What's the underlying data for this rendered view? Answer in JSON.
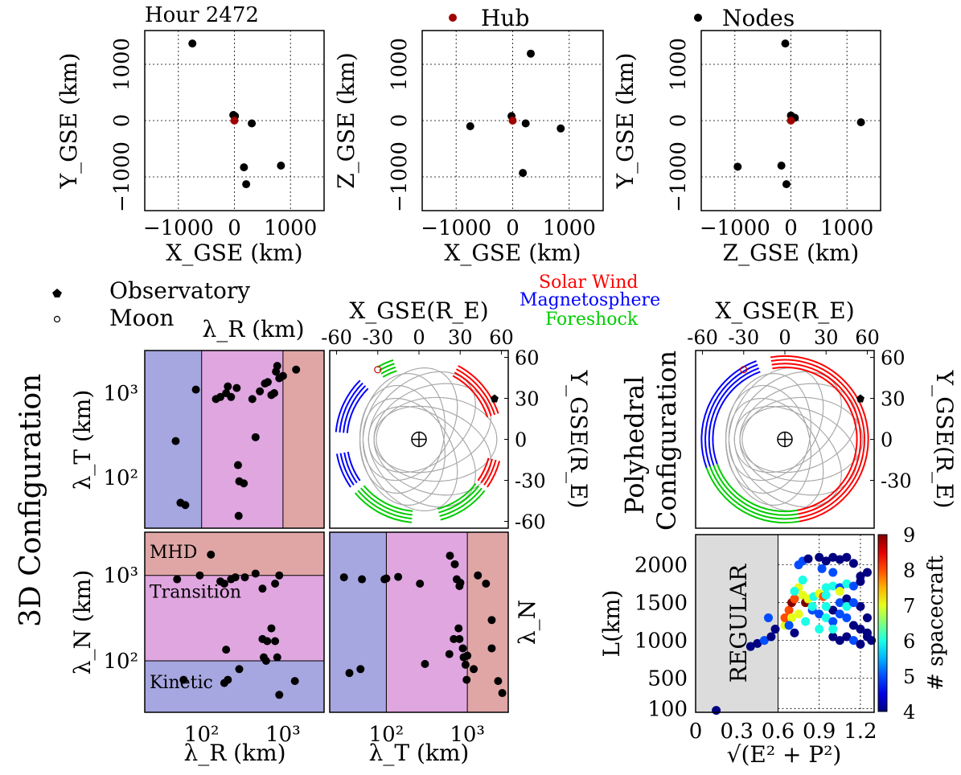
{
  "header": {
    "hour_label": "Hour 2472",
    "legend_hub": "Hub",
    "legend_nodes": "Nodes",
    "legend_observatory": "Observatory",
    "legend_moon": "Moon",
    "region_solar_wind": "Solar Wind",
    "region_magnetosphere": "Magnetosphere",
    "region_foreshock": "Foreshock",
    "left_title": "3D Configuration",
    "right_title_line1": "Polyhedral",
    "right_title_line2": "Configuration"
  },
  "colors": {
    "hub": "#a00000",
    "nodes": "#000000",
    "solar_wind": "#ff0000",
    "magnetosphere": "#0000ff",
    "foreshock": "#00cc00",
    "orbit_rings": "#a8a8a8",
    "kinetic_region": "#a6a6e0",
    "transition_region": "#e0a6e0",
    "mhd_region": "#e0a6a6",
    "regular_region": "#dcdcdc"
  },
  "chart_data": [
    {
      "id": "xy",
      "type": "scatter",
      "xlabel": "X_GSE (km)",
      "ylabel": "Y_GSE (km)",
      "xlim": [
        -1600,
        1600
      ],
      "ylim": [
        -1600,
        1600
      ],
      "xticks": [
        "−1000",
        "0",
        "1000"
      ],
      "yticks": [
        "−1000",
        "0",
        "1000"
      ],
      "hub": [
        0,
        0
      ],
      "nodes": [
        [
          -750,
          1370
        ],
        [
          -20,
          100
        ],
        [
          10,
          80
        ],
        [
          310,
          -50
        ],
        [
          170,
          -830
        ],
        [
          830,
          -800
        ],
        [
          210,
          -1130
        ]
      ]
    },
    {
      "id": "xz",
      "type": "scatter",
      "xlabel": "X_GSE (km)",
      "ylabel": "Z_GSE (km)",
      "xlim": [
        -1600,
        1600
      ],
      "ylim": [
        -1600,
        1600
      ],
      "xticks": [
        "−1000",
        "0",
        "1000"
      ],
      "yticks": [
        "−1000",
        "0",
        "1000"
      ],
      "hub": [
        0,
        0
      ],
      "nodes": [
        [
          320,
          1190
        ],
        [
          -750,
          -100
        ],
        [
          -20,
          80
        ],
        [
          230,
          -50
        ],
        [
          850,
          -140
        ],
        [
          180,
          -930
        ]
      ]
    },
    {
      "id": "zy",
      "type": "scatter",
      "xlabel": "Z_GSE (km)",
      "ylabel": "Y_GSE (km)",
      "xlim": [
        -1600,
        1600
      ],
      "ylim": [
        -1600,
        1600
      ],
      "xticks": [
        "−1000",
        "0",
        "1000"
      ],
      "yticks": [
        "−1000",
        "0",
        "1000"
      ],
      "hub": [
        0,
        0
      ],
      "nodes": [
        [
          -100,
          1370
        ],
        [
          0,
          90
        ],
        [
          70,
          50
        ],
        [
          1250,
          -30
        ],
        [
          -950,
          -820
        ],
        [
          -170,
          -800
        ],
        [
          -80,
          -1130
        ]
      ]
    },
    {
      "id": "lr-lt",
      "type": "scatter",
      "xlabel": "λ_R (km)",
      "ylabel": "λ_T (km)",
      "xlim": [
        20,
        3200
      ],
      "ylim": [
        25,
        3200
      ],
      "xticks": [
        "10²",
        "10³"
      ],
      "yticks": [
        "10²",
        "10³"
      ],
      "regions_x": [
        100,
        1000
      ],
      "points": [
        [
          85,
          1100
        ],
        [
          150,
          850
        ],
        [
          170,
          900
        ],
        [
          200,
          1000
        ],
        [
          210,
          1200
        ],
        [
          230,
          900
        ],
        [
          270,
          1150
        ],
        [
          420,
          850
        ],
        [
          520,
          1050
        ],
        [
          600,
          1300
        ],
        [
          650,
          1350
        ],
        [
          720,
          950
        ],
        [
          780,
          1000
        ],
        [
          820,
          1800
        ],
        [
          900,
          1500
        ],
        [
          850,
          2100
        ],
        [
          1000,
          1600
        ],
        [
          1450,
          1900
        ],
        [
          48,
          270
        ],
        [
          55,
          50
        ],
        [
          63,
          47
        ],
        [
          280,
          140
        ],
        [
          290,
          90
        ],
        [
          330,
          85
        ],
        [
          285,
          35
        ],
        [
          460,
          300
        ]
      ]
    },
    {
      "id": "orbit-1",
      "type": "polar-orbits",
      "xlabel": "X_GSE(R_E)",
      "ylabel": "Y_GSE(R_E)",
      "xlim": [
        -65,
        65
      ],
      "ylim": [
        -65,
        65
      ],
      "xticks": [
        "-60",
        "-30",
        "0",
        "30",
        "60"
      ],
      "yticks": [
        "60",
        "30",
        "0",
        "-30",
        "-60"
      ],
      "observatory": [
        55,
        30
      ],
      "moon": [
        -30,
        51
      ]
    },
    {
      "id": "orbit-2",
      "type": "polar-orbits",
      "xlabel": "X_GSE(R_E)",
      "ylabel": "Y_GSE(R_E)",
      "xlim": [
        -65,
        65
      ],
      "ylim": [
        -65,
        65
      ],
      "xticks": [
        "-60",
        "-30",
        "0",
        "30",
        "60"
      ],
      "yticks": [
        "60",
        "30",
        "0",
        "-30"
      ],
      "observatory": [
        55,
        30
      ],
      "moon": [
        -30,
        51
      ]
    },
    {
      "id": "lr-ln",
      "type": "scatter",
      "xlabel": "λ_R (km)",
      "ylabel": "λ_N (km)",
      "xlim": [
        20,
        3200
      ],
      "ylim": [
        25,
        3200
      ],
      "xticks": [
        "10²",
        "10³"
      ],
      "yticks": [
        "10²",
        "10³"
      ],
      "regions_y": [
        100,
        1000
      ],
      "region_labels": [
        "MHD",
        "Transition",
        "Kinetic"
      ],
      "points": [
        [
          130,
          1750
        ],
        [
          50,
          900
        ],
        [
          95,
          1000
        ],
        [
          170,
          850
        ],
        [
          190,
          800
        ],
        [
          230,
          900
        ],
        [
          260,
          950
        ],
        [
          340,
          950
        ],
        [
          460,
          1050
        ],
        [
          560,
          700
        ],
        [
          800,
          800
        ],
        [
          900,
          1000
        ],
        [
          200,
          135
        ],
        [
          290,
          80
        ],
        [
          560,
          180
        ],
        [
          640,
          170
        ],
        [
          720,
          240
        ],
        [
          800,
          170
        ],
        [
          850,
          110
        ],
        [
          580,
          110
        ],
        [
          620,
          100
        ],
        [
          60,
          60
        ],
        [
          190,
          55
        ],
        [
          210,
          60
        ],
        [
          900,
          40
        ],
        [
          1400,
          58
        ]
      ]
    },
    {
      "id": "lt-ln",
      "type": "scatter",
      "xlabel": "λ_T (km)",
      "ylabel": "λ_N",
      "xlim": [
        20,
        3200
      ],
      "ylim": [
        25,
        3200
      ],
      "xticks": [
        "10²",
        "10³"
      ],
      "yticks": [],
      "regions_x": [
        100,
        1000
      ],
      "points": [
        [
          30,
          950
        ],
        [
          50,
          900
        ],
        [
          95,
          900
        ],
        [
          100,
          920
        ],
        [
          140,
          960
        ],
        [
          260,
          800
        ],
        [
          610,
          1700
        ],
        [
          700,
          1350
        ],
        [
          740,
          900
        ],
        [
          800,
          750
        ],
        [
          820,
          820
        ],
        [
          1350,
          1000
        ],
        [
          1700,
          800
        ],
        [
          2000,
          300
        ],
        [
          35,
          72
        ],
        [
          48,
          80
        ],
        [
          300,
          92
        ],
        [
          600,
          120
        ],
        [
          680,
          180
        ],
        [
          780,
          240
        ],
        [
          800,
          180
        ],
        [
          880,
          140
        ],
        [
          900,
          110
        ],
        [
          950,
          90
        ],
        [
          1000,
          115
        ],
        [
          980,
          60
        ],
        [
          1200,
          80
        ],
        [
          2000,
          140
        ],
        [
          2400,
          58
        ],
        [
          2700,
          42
        ]
      ]
    },
    {
      "id": "ep-l",
      "type": "scatter",
      "xlabel": "√(E² + P²)",
      "ylabel": "L(km)",
      "xlim": [
        0,
        1.3
      ],
      "ylim": [
        50,
        2400
      ],
      "xticks": [
        "0",
        "0.3",
        "0.6",
        "0.9",
        "1.2"
      ],
      "yticks": [
        "100",
        "500",
        "1000",
        "1500",
        "2000"
      ],
      "regular_xmax": 0.6,
      "region_label": "REGULAR",
      "colorbar": {
        "label": "# spacecraft",
        "ticks": [
          "4",
          "5",
          "6",
          "7",
          "8",
          "9"
        ],
        "min": 4,
        "max": 9
      },
      "points": [
        [
          0.15,
          75,
          4
        ],
        [
          0.4,
          920,
          4
        ],
        [
          0.45,
          960,
          4
        ],
        [
          0.5,
          1000,
          5
        ],
        [
          0.55,
          1050,
          4
        ],
        [
          0.58,
          1150,
          4
        ],
        [
          0.53,
          1300,
          5
        ],
        [
          0.65,
          1200,
          7
        ],
        [
          0.65,
          1300,
          8
        ],
        [
          0.68,
          1400,
          8
        ],
        [
          0.7,
          1500,
          9
        ],
        [
          0.72,
          1550,
          8
        ],
        [
          0.75,
          1700,
          7
        ],
        [
          0.78,
          1800,
          6
        ],
        [
          0.72,
          1650,
          6
        ],
        [
          0.78,
          1600,
          7
        ],
        [
          0.8,
          1500,
          9
        ],
        [
          0.82,
          1550,
          7
        ],
        [
          0.86,
          1580,
          6
        ],
        [
          0.9,
          1620,
          7
        ],
        [
          0.93,
          1580,
          8
        ],
        [
          0.95,
          1700,
          6
        ],
        [
          1.0,
          1720,
          6
        ],
        [
          1.05,
          1700,
          5
        ],
        [
          1.1,
          1750,
          6
        ],
        [
          1.15,
          1720,
          5
        ],
        [
          1.2,
          1780,
          4
        ],
        [
          0.75,
          2000,
          5
        ],
        [
          0.78,
          2050,
          5
        ],
        [
          0.82,
          2080,
          4
        ],
        [
          0.9,
          2100,
          4
        ],
        [
          0.95,
          2050,
          4
        ],
        [
          1.0,
          2100,
          4
        ],
        [
          1.05,
          2070,
          4
        ],
        [
          1.1,
          2100,
          4
        ],
        [
          1.15,
          2020,
          4
        ],
        [
          1.2,
          1850,
          4
        ],
        [
          1.25,
          1900,
          4
        ],
        [
          0.92,
          1950,
          5
        ],
        [
          1.0,
          1900,
          5
        ],
        [
          0.85,
          1400,
          5
        ],
        [
          0.9,
          1350,
          5
        ],
        [
          0.95,
          1300,
          6
        ],
        [
          1.0,
          1400,
          4
        ],
        [
          1.05,
          1350,
          5
        ],
        [
          1.1,
          1300,
          5
        ],
        [
          1.15,
          1200,
          4
        ],
        [
          1.2,
          1150,
          4
        ],
        [
          1.25,
          1100,
          4
        ],
        [
          1.0,
          1250,
          5
        ],
        [
          0.95,
          1450,
          6
        ],
        [
          1.05,
          1500,
          5
        ],
        [
          1.1,
          1550,
          4
        ],
        [
          1.2,
          1450,
          4
        ],
        [
          1.25,
          1300,
          4
        ],
        [
          0.85,
          1450,
          6
        ],
        [
          0.75,
          1350,
          7
        ],
        [
          0.7,
          1300,
          7
        ],
        [
          0.68,
          1200,
          5
        ],
        [
          0.72,
          1100,
          4
        ],
        [
          1.0,
          1050,
          4
        ],
        [
          1.05,
          1000,
          4
        ],
        [
          1.1,
          1050,
          4
        ],
        [
          1.15,
          1000,
          5
        ],
        [
          1.2,
          950,
          4
        ],
        [
          1.25,
          1050,
          4
        ],
        [
          1.28,
          1000,
          4
        ],
        [
          0.9,
          1150,
          6
        ],
        [
          1.0,
          1150,
          6
        ],
        [
          0.8,
          1250,
          6
        ],
        [
          0.95,
          1600,
          6
        ],
        [
          1.05,
          1650,
          7
        ],
        [
          1.1,
          1450,
          6
        ],
        [
          1.15,
          1500,
          5
        ]
      ]
    }
  ]
}
